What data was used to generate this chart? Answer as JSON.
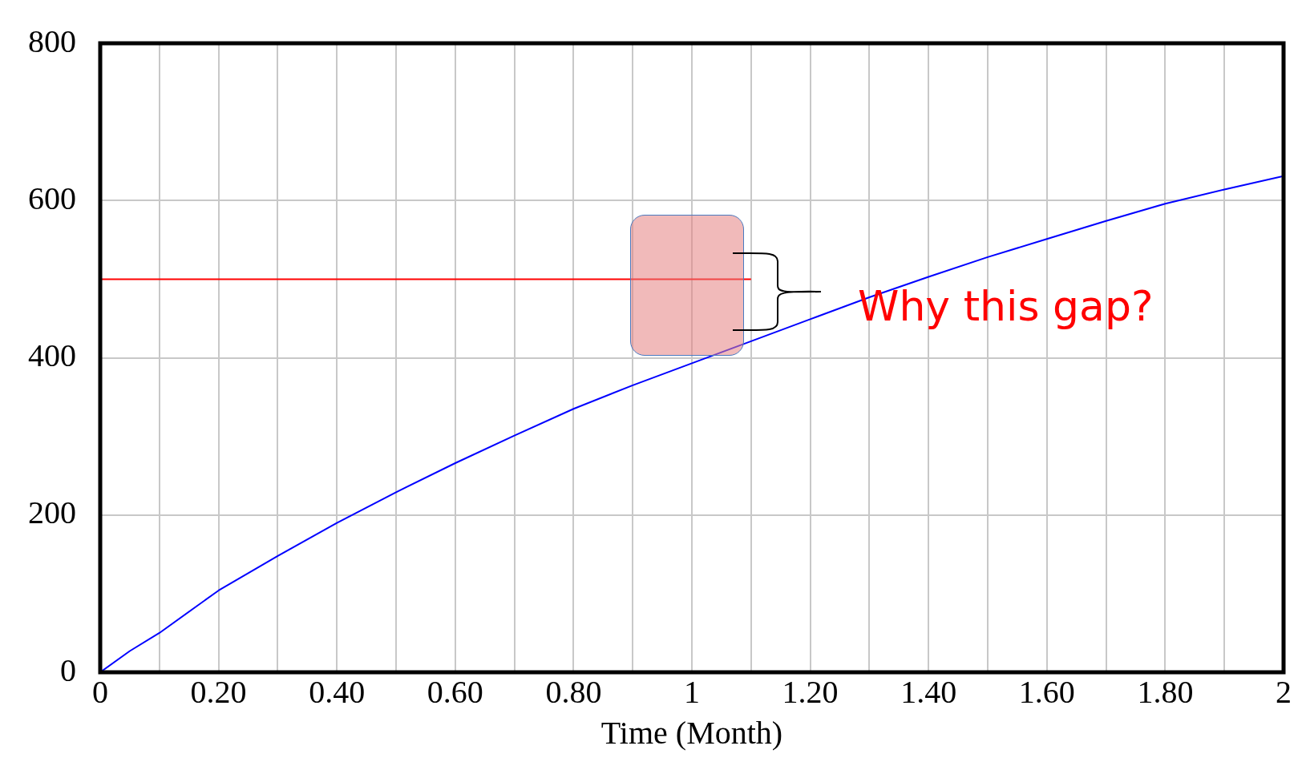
{
  "chart_data": {
    "type": "line",
    "xlabel": "Time (Month)",
    "xlim": [
      0,
      2
    ],
    "ylim": [
      0,
      800
    ],
    "xticks": [
      0,
      {
        "value": 0.1,
        "label": null
      },
      {
        "value": 0.2,
        "label": "0.20"
      },
      {
        "value": 0.3,
        "label": null
      },
      {
        "value": 0.4,
        "label": "0.40"
      },
      {
        "value": 0.5,
        "label": null
      },
      {
        "value": 0.6,
        "label": "0.60"
      },
      {
        "value": 0.7,
        "label": null
      },
      {
        "value": 0.8,
        "label": "0.80"
      },
      {
        "value": 0.9,
        "label": null
      },
      1,
      {
        "value": 1.1,
        "label": null
      },
      {
        "value": 1.2,
        "label": "1.20"
      },
      {
        "value": 1.3,
        "label": null
      },
      {
        "value": 1.4,
        "label": "1.40"
      },
      {
        "value": 1.5,
        "label": null
      },
      {
        "value": 1.6,
        "label": "1.60"
      },
      {
        "value": 1.7,
        "label": null
      },
      {
        "value": 1.8,
        "label": "1.80"
      },
      {
        "value": 1.9,
        "label": null
      },
      2
    ],
    "yticks": [
      0,
      200,
      400,
      600,
      800
    ],
    "grid": true,
    "legend": false,
    "marker": "none",
    "line_style": "solid",
    "series": [
      {
        "color": "#0000ff",
        "x": [
          0,
          0.05,
          0.1,
          0.2,
          0.3,
          0.4,
          0.5,
          0.6,
          0.7,
          0.8,
          0.9,
          1.0,
          1.1,
          1.2,
          1.3,
          1.4,
          1.5,
          1.6,
          1.7,
          1.8,
          1.9,
          2.0
        ],
        "values": [
          0,
          27,
          50,
          104,
          148,
          190,
          229,
          266,
          301,
          335,
          365,
          393,
          421,
          449,
          477,
          503,
          528,
          551,
          574,
          596,
          614,
          631
        ]
      },
      {
        "color": "#ff0000",
        "x": [
          0,
          1.1
        ],
        "values": [
          500,
          500
        ]
      }
    ],
    "annotations": [
      "Why this gap?"
    ]
  }
}
